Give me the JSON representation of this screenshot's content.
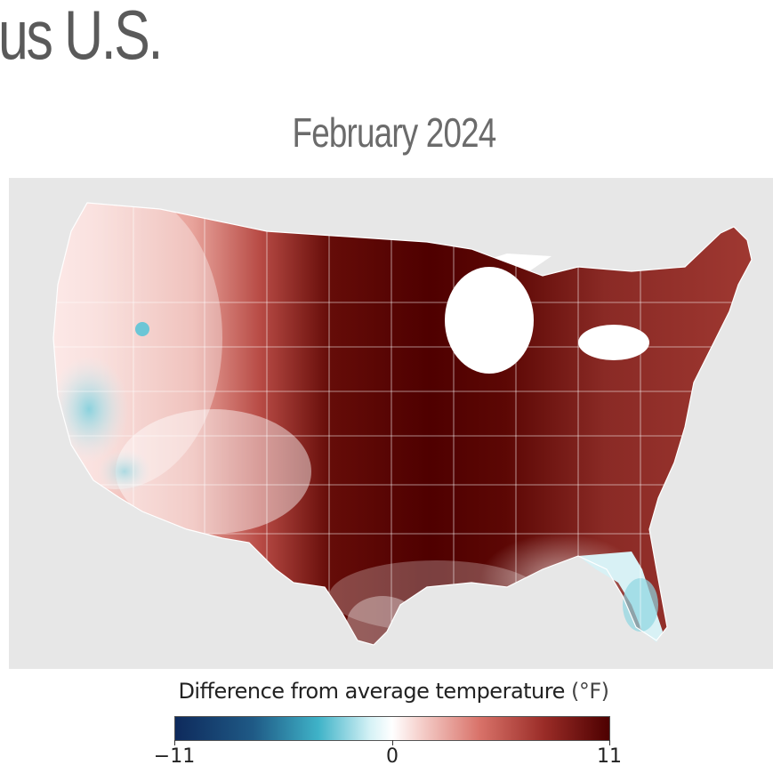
{
  "header": {
    "fragment": "us U.S."
  },
  "map": {
    "title": "February 2024",
    "legend": {
      "label": "Difference from average temperature",
      "unit": "(°F)",
      "min": -11,
      "mid": 0,
      "max": 11,
      "tick_min": "−11",
      "tick_mid": "0",
      "tick_max": "11",
      "colors": {
        "min": "#0e2a5c",
        "cool": "#3fb3c8",
        "neutral": "#ffffff",
        "warm": "#d9736a",
        "max": "#4d0000"
      }
    },
    "colors": {
      "land_background": "#e7e7e7",
      "water": "#ffffff",
      "state_lines": "#ffffff"
    }
  }
}
